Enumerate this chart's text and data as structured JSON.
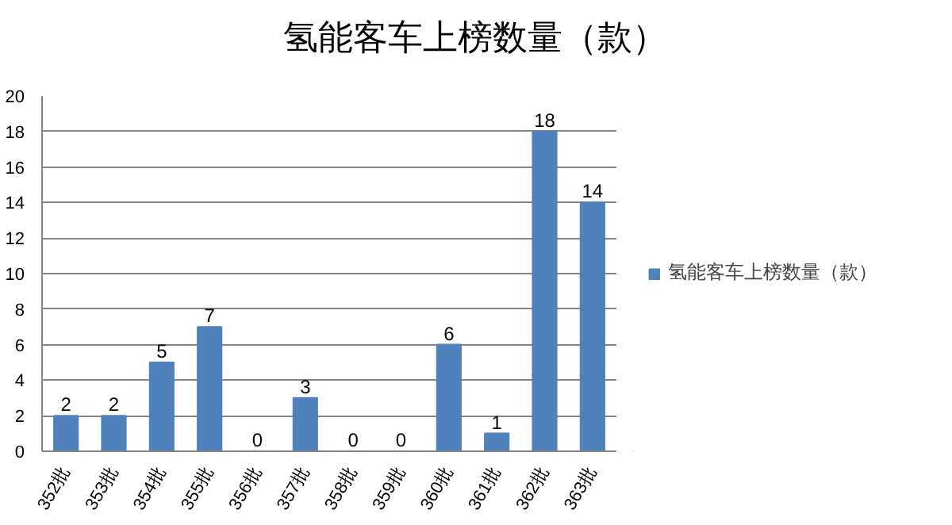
{
  "chart_data": {
    "type": "bar",
    "title": "氢能客车上榜数量（款）",
    "categories": [
      "352批",
      "353批",
      "354批",
      "355批",
      "356批",
      "357批",
      "358批",
      "359批",
      "360批",
      "361批",
      "362批",
      "363批"
    ],
    "series": [
      {
        "name": "氢能客车上榜数量（款）",
        "color": "#4f81bd",
        "values": [
          2,
          2,
          5,
          7,
          0,
          3,
          0,
          0,
          6,
          1,
          18,
          14
        ]
      }
    ],
    "ylim": [
      0,
      20
    ],
    "yticks": [
      0,
      2,
      4,
      6,
      8,
      10,
      12,
      14,
      16,
      18,
      20
    ],
    "grid": "y",
    "legend": "right",
    "data_labels": true
  }
}
